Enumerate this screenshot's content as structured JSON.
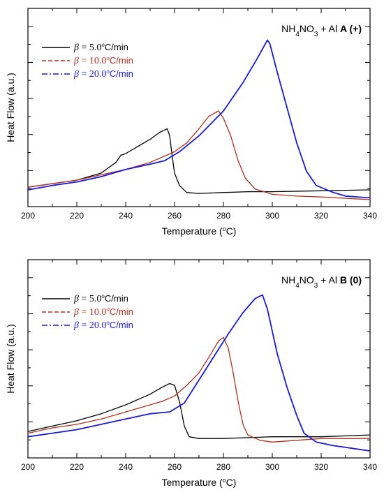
{
  "chart_data": [
    {
      "type": "line",
      "panel": "A",
      "annotation": {
        "compound_a": "NH",
        "sub_a": "4",
        "compound_b": "NO",
        "sub_b": "3",
        "rest": " + Al",
        "tag": "A",
        "tag_paren": "(+)"
      },
      "xlabel": "Temperature (°C)",
      "ylabel": "Heat Flow (a.u.)",
      "xlim": [
        200,
        340
      ],
      "ylim": [
        0,
        1
      ],
      "x_ticks": [
        "200",
        "220",
        "240",
        "260",
        "280",
        "300",
        "320",
        "340"
      ],
      "legend": {
        "placement": "top-left"
      },
      "series": [
        {
          "name": "β = 5.0°C/min",
          "color": "#000000",
          "dash": "solid",
          "points": [
            [
              200,
              0.07
            ],
            [
              210,
              0.09
            ],
            [
              220,
              0.11
            ],
            [
              230,
              0.15
            ],
            [
              236,
              0.21
            ],
            [
              238,
              0.25
            ],
            [
              240,
              0.26
            ],
            [
              245,
              0.3
            ],
            [
              250,
              0.34
            ],
            [
              254,
              0.38
            ],
            [
              257,
              0.4
            ],
            [
              258,
              0.36
            ],
            [
              259,
              0.25
            ],
            [
              260,
              0.15
            ],
            [
              262,
              0.08
            ],
            [
              265,
              0.04
            ],
            [
              270,
              0.035
            ],
            [
              280,
              0.04
            ],
            [
              290,
              0.045
            ],
            [
              300,
              0.045
            ],
            [
              320,
              0.05
            ],
            [
              340,
              0.055
            ]
          ]
        },
        {
          "name": "β = 10.0°C/min",
          "color": "#b03020",
          "dash": "dash",
          "points": [
            [
              200,
              0.07
            ],
            [
              210,
              0.09
            ],
            [
              220,
              0.11
            ],
            [
              230,
              0.14
            ],
            [
              240,
              0.17
            ],
            [
              250,
              0.21
            ],
            [
              260,
              0.27
            ],
            [
              265,
              0.32
            ],
            [
              270,
              0.4
            ],
            [
              274,
              0.47
            ],
            [
              278,
              0.5
            ],
            [
              280,
              0.46
            ],
            [
              283,
              0.36
            ],
            [
              286,
              0.22
            ],
            [
              289,
              0.12
            ],
            [
              293,
              0.06
            ],
            [
              300,
              0.03
            ],
            [
              310,
              0.02
            ],
            [
              320,
              0.015
            ],
            [
              340,
              0.0
            ]
          ]
        },
        {
          "name": "β = 20.0°C/min",
          "color": "#1a1ad0",
          "dash": "dashdot",
          "points": [
            [
              200,
              0.055
            ],
            [
              210,
              0.08
            ],
            [
              220,
              0.1
            ],
            [
              230,
              0.13
            ],
            [
              240,
              0.17
            ],
            [
              250,
              0.2
            ],
            [
              256,
              0.22
            ],
            [
              262,
              0.27
            ],
            [
              270,
              0.36
            ],
            [
              280,
              0.5
            ],
            [
              288,
              0.66
            ],
            [
              294,
              0.8
            ],
            [
              298,
              0.9
            ],
            [
              299,
              0.88
            ],
            [
              302,
              0.72
            ],
            [
              306,
              0.52
            ],
            [
              310,
              0.32
            ],
            [
              314,
              0.16
            ],
            [
              318,
              0.08
            ],
            [
              325,
              0.04
            ],
            [
              330,
              0.02
            ],
            [
              340,
              0.01
            ]
          ]
        }
      ]
    },
    {
      "type": "line",
      "panel": "B",
      "annotation": {
        "compound_a": "NH",
        "sub_a": "4",
        "compound_b": "NO",
        "sub_b": "3",
        "rest": " + Al",
        "tag": "B",
        "tag_paren": "(0)"
      },
      "xlabel": "Temperature (°C)",
      "ylabel": "Heat Flow (a.u.)",
      "xlim": [
        200,
        340
      ],
      "ylim": [
        0,
        1
      ],
      "x_ticks": [
        "200",
        "220",
        "240",
        "260",
        "280",
        "300",
        "320",
        "340"
      ],
      "legend": {
        "placement": "top-left"
      },
      "series": [
        {
          "name": "β = 5.0°C/min",
          "color": "#000000",
          "dash": "solid",
          "points": [
            [
              200,
              0.11
            ],
            [
              210,
              0.14
            ],
            [
              220,
              0.17
            ],
            [
              230,
              0.21
            ],
            [
              240,
              0.26
            ],
            [
              250,
              0.32
            ],
            [
              255,
              0.36
            ],
            [
              258,
              0.38
            ],
            [
              260,
              0.37
            ],
            [
              262,
              0.28
            ],
            [
              264,
              0.14
            ],
            [
              266,
              0.08
            ],
            [
              270,
              0.07
            ],
            [
              280,
              0.07
            ],
            [
              300,
              0.08
            ],
            [
              320,
              0.08
            ],
            [
              340,
              0.09
            ]
          ]
        },
        {
          "name": "β = 10.0°C/min",
          "color": "#b03020",
          "dash": "dash",
          "points": [
            [
              200,
              0.1
            ],
            [
              210,
              0.13
            ],
            [
              220,
              0.15
            ],
            [
              230,
              0.18
            ],
            [
              240,
              0.22
            ],
            [
              250,
              0.26
            ],
            [
              255,
              0.28
            ],
            [
              260,
              0.31
            ],
            [
              265,
              0.37
            ],
            [
              270,
              0.44
            ],
            [
              275,
              0.55
            ],
            [
              278,
              0.62
            ],
            [
              280,
              0.64
            ],
            [
              282,
              0.58
            ],
            [
              284,
              0.44
            ],
            [
              286,
              0.28
            ],
            [
              288,
              0.15
            ],
            [
              290,
              0.09
            ],
            [
              295,
              0.06
            ],
            [
              300,
              0.05
            ],
            [
              310,
              0.06
            ],
            [
              320,
              0.07
            ],
            [
              340,
              0.07
            ]
          ]
        },
        {
          "name": "β = 20.0°C/min",
          "color": "#1a1ad0",
          "dash": "dashdot",
          "points": [
            [
              200,
              0.08
            ],
            [
              210,
              0.1
            ],
            [
              220,
              0.12
            ],
            [
              230,
              0.15
            ],
            [
              240,
              0.18
            ],
            [
              250,
              0.21
            ],
            [
              258,
              0.22
            ],
            [
              264,
              0.27
            ],
            [
              270,
              0.4
            ],
            [
              276,
              0.53
            ],
            [
              282,
              0.66
            ],
            [
              288,
              0.78
            ],
            [
              293,
              0.86
            ],
            [
              296,
              0.88
            ],
            [
              298,
              0.8
            ],
            [
              302,
              0.55
            ],
            [
              306,
              0.36
            ],
            [
              310,
              0.2
            ],
            [
              313,
              0.1
            ],
            [
              318,
              0.05
            ],
            [
              325,
              0.03
            ],
            [
              330,
              0.02
            ],
            [
              340,
              0.0
            ]
          ]
        }
      ]
    }
  ]
}
